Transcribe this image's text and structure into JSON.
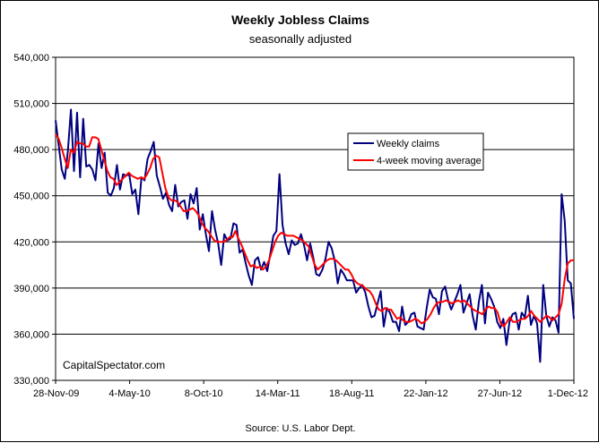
{
  "chart_data": {
    "type": "line",
    "title": "Weekly Jobless Claims",
    "subtitle": "seasonally adjusted",
    "source": "Source: U.S. Labor Dept.",
    "watermark": "CapitalSpectator.com",
    "xlabel": "",
    "ylabel": "",
    "ylim": [
      330000,
      540000
    ],
    "y_ticks": [
      330000,
      360000,
      390000,
      420000,
      450000,
      480000,
      510000,
      540000
    ],
    "y_tick_labels": [
      "330,000",
      "360,000",
      "390,000",
      "420,000",
      "450,000",
      "480,000",
      "510,000",
      "540,000"
    ],
    "x_range": [
      "2009-11-28",
      "2012-12-01"
    ],
    "x_tick_labels": [
      "28-Nov-09",
      "4-May-10",
      "8-Oct-10",
      "14-Mar-11",
      "18-Aug-11",
      "22-Jan-12",
      "27-Jun-12",
      "1-Dec-12"
    ],
    "x_tick_dates": [
      "2009-11-28",
      "2010-05-04",
      "2010-10-08",
      "2011-03-14",
      "2011-08-18",
      "2012-01-22",
      "2012-06-27",
      "2012-12-01"
    ],
    "grid": true,
    "legend_position": "right",
    "colors": {
      "weekly": "#000080",
      "average": "#ff0000",
      "grid": "#000000",
      "plot_bg": "#ffffff"
    },
    "series": [
      {
        "name": "Weekly claims",
        "values": [
          499000,
          483000,
          467000,
          461000,
          479000,
          506000,
          466000,
          504000,
          462000,
          500000,
          469000,
          470000,
          467000,
          460000,
          484000,
          468000,
          478000,
          452000,
          450000,
          455000,
          470000,
          454000,
          464000,
          463000,
          464000,
          451000,
          454000,
          438000,
          462000,
          460000,
          474000,
          479000,
          485000,
          463000,
          456000,
          448000,
          452000,
          444000,
          440000,
          457000,
          443000,
          446000,
          447000,
          435000,
          451000,
          445000,
          455000,
          428000,
          438000,
          425000,
          414000,
          440000,
          428000,
          419000,
          405000,
          425000,
          421000,
          422000,
          432000,
          431000,
          413000,
          415000,
          406000,
          398000,
          392000,
          408000,
          410000,
          402000,
          407000,
          401000,
          412000,
          424000,
          427000,
          464000,
          431000,
          419000,
          412000,
          421000,
          418000,
          419000,
          425000,
          418000,
          408000,
          419000,
          410000,
          399000,
          398000,
          402000,
          409000,
          420000,
          416000,
          408000,
          393000,
          402000,
          399000,
          395000,
          395000,
          395000,
          387000,
          390000,
          392000,
          387000,
          378000,
          371000,
          372000,
          380000,
          388000,
          365000,
          377000,
          374000,
          368000,
          368000,
          362000,
          378000,
          366000,
          368000,
          373000,
          374000,
          365000,
          364000,
          363000,
          377000,
          389000,
          384000,
          383000,
          373000,
          388000,
          391000,
          382000,
          376000,
          381000,
          386000,
          392000,
          374000,
          380000,
          386000,
          372000,
          363000,
          381000,
          392000,
          367000,
          387000,
          383000,
          378000,
          368000,
          364000,
          370000,
          353000,
          368000,
          373000,
          374000,
          363000,
          374000,
          371000,
          385000,
          366000,
          372000,
          367000,
          342000,
          392000,
          372000,
          365000,
          371000,
          369000,
          361000,
          451000,
          434000,
          395000,
          393000,
          370000
        ]
      },
      {
        "name": "4-week moving average",
        "values": [
          490000,
          487000,
          481000,
          474000,
          468000,
          480000,
          478000,
          485000,
          484000,
          484000,
          482000,
          482000,
          488000,
          488000,
          487000,
          480000,
          473000,
          466000,
          462000,
          461000,
          457000,
          459000,
          461000,
          463000,
          465000,
          463000,
          462000,
          461000,
          462000,
          461000,
          464000,
          468000,
          474000,
          476000,
          475000,
          465000,
          455000,
          449000,
          447000,
          447000,
          446000,
          443000,
          440000,
          440000,
          441000,
          442000,
          440000,
          437000,
          432000,
          429000,
          427000,
          424000,
          421000,
          420000,
          420000,
          420000,
          421000,
          423000,
          423000,
          427000,
          422000,
          418000,
          413000,
          408000,
          404000,
          405000,
          403000,
          404000,
          402000,
          404000,
          408000,
          414000,
          420000,
          424000,
          426000,
          425000,
          424000,
          424000,
          424000,
          423000,
          422000,
          421000,
          419000,
          417000,
          411000,
          405000,
          402000,
          404000,
          406000,
          408000,
          409000,
          409000,
          408000,
          406000,
          404000,
          402000,
          402000,
          399000,
          395000,
          393000,
          392000,
          391000,
          389000,
          388000,
          385000,
          380000,
          376000,
          375000,
          377000,
          376000,
          376000,
          373000,
          370000,
          371000,
          369000,
          368000,
          368000,
          369000,
          370000,
          369000,
          367000,
          368000,
          370000,
          373000,
          377000,
          380000,
          381000,
          381000,
          382000,
          381000,
          380000,
          381000,
          382000,
          381000,
          382000,
          380000,
          378000,
          376000,
          375000,
          374000,
          373000,
          376000,
          378000,
          377000,
          377000,
          374000,
          367000,
          365000,
          368000,
          371000,
          368000,
          368000,
          369000,
          370000,
          370000,
          372000,
          375000,
          372000,
          370000,
          368000,
          370000,
          372000,
          371000,
          369000,
          371000,
          373000,
          380000,
          396000,
          406000,
          408000,
          408000
        ]
      }
    ]
  }
}
